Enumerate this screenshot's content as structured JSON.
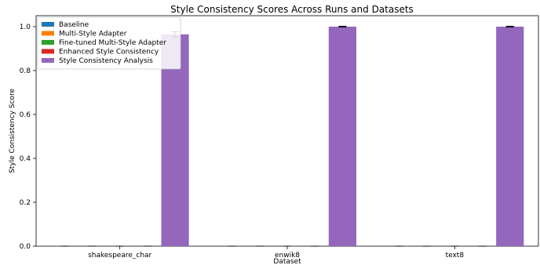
{
  "chart_data": {
    "type": "bar",
    "title": "Style Consistency Scores Across Runs and Datasets",
    "xlabel": "Dataset",
    "ylabel": "Style Consistency Score",
    "categories": [
      "shakespeare_char",
      "enwik8",
      "text8"
    ],
    "ylim": [
      0,
      1.05
    ],
    "yticks": [
      0.0,
      0.2,
      0.4,
      0.6,
      0.8,
      1.0
    ],
    "ytick_labels": [
      "0.0",
      "0.2",
      "0.4",
      "0.6",
      "0.8",
      "1.0"
    ],
    "grid": false,
    "legend_position": "top-left",
    "series": [
      {
        "name": "Baseline",
        "color": "#1f77b4",
        "values": [
          0,
          0,
          0
        ],
        "errors": [
          0,
          0,
          0
        ]
      },
      {
        "name": "Multi-Style Adapter",
        "color": "#ff7f0e",
        "values": [
          0,
          0,
          0
        ],
        "errors": [
          0,
          0,
          0
        ]
      },
      {
        "name": "Fine-tuned Multi-Style Adapter",
        "color": "#2ca02c",
        "values": [
          0,
          0,
          0
        ],
        "errors": [
          0,
          0,
          0
        ]
      },
      {
        "name": "Enhanced Style Consistency",
        "color": "#d62728",
        "values": [
          0,
          0,
          0
        ],
        "errors": [
          0,
          0,
          0
        ]
      },
      {
        "name": "Style Consistency Analysis",
        "color": "#9467bd",
        "values": [
          0.965,
          1.0,
          1.0
        ],
        "errors": [
          0.012,
          0.002,
          0.002
        ]
      }
    ]
  }
}
